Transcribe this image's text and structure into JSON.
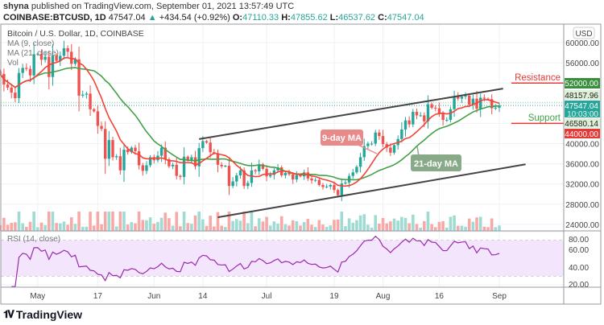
{
  "header": {
    "author": "shyna",
    "published": "published on TradingView.com, September 01, 2021 13:57:49 UTC",
    "symbol": "COINBASE:BTCUSD, 1D",
    "last": "47547.04",
    "change": "+434.54 (+0.92%)",
    "open_label": "O:",
    "open": "47110.33",
    "high_label": "H:",
    "high": "47855.62",
    "low_label": "L:",
    "low": "46537.62",
    "close_label": "C:",
    "close": "47547.04",
    "up_icon": "triangle-up-icon"
  },
  "legend": {
    "title": "Bitcoin / U.S. Dollar, 1D, COINBASE",
    "ma9": "MA (9, close)",
    "ma21": "MA (21, close)",
    "vol": "Vol",
    "rsi": "RSI (14, close)"
  },
  "annotations": {
    "resistance": "Resistance",
    "support": "Support",
    "ma9_callout": "9-day MA",
    "ma21_callout": "21-day MA"
  },
  "price_axis": {
    "currency": "USD",
    "ticks": [
      "60000.00",
      "56000.00",
      "40000.00",
      "36000.00",
      "32000.00",
      "28000.00",
      "24000.00"
    ],
    "tick_values": [
      60000,
      56000,
      40000,
      36000,
      32000,
      28000,
      24000
    ],
    "labels": [
      {
        "text": "52000.00",
        "value": 52000,
        "bg": "#388e3c",
        "fg": "#ffffff"
      },
      {
        "text": "48157.96",
        "value": 48157.96,
        "bg": "#dff0d8",
        "fg": "#222222"
      },
      {
        "text": "47547.04",
        "sub": "10:03:00",
        "value": 47547.04,
        "bg": "#26a69a",
        "fg": "#ffffff"
      },
      {
        "text": "46580.14",
        "value": 46580.14,
        "bg": "#dff0d8",
        "fg": "#222222"
      },
      {
        "text": "44000.00",
        "value": 44000,
        "bg": "#e53935",
        "fg": "#ffffff"
      }
    ]
  },
  "rsi_axis": {
    "ticks": [
      "80.00",
      "60.00",
      "40.00",
      "20.00"
    ],
    "tick_values": [
      80,
      60,
      40,
      20
    ],
    "band": [
      30,
      70
    ]
  },
  "time_axis": [
    {
      "label": "May",
      "date": "2021-05-01"
    },
    {
      "label": "17",
      "date": "2021-05-17"
    },
    {
      "label": "Jun",
      "date": "2021-06-01"
    },
    {
      "label": "14",
      "date": "2021-06-14"
    },
    {
      "label": "Jul",
      "date": "2021-07-01"
    },
    {
      "label": "19",
      "date": "2021-07-19"
    },
    {
      "label": "Aug",
      "date": "2021-08-01"
    },
    {
      "label": "16",
      "date": "2021-08-16"
    },
    {
      "label": "Sep",
      "date": "2021-09-01"
    }
  ],
  "brand": {
    "name": "TradingView"
  },
  "colors": {
    "up": "#26a69a",
    "down": "#ef5350",
    "ma9": "#f44336",
    "ma21": "#43a047",
    "rsi": "#9c27b0",
    "resistance": "#e53935",
    "support": "#43a047",
    "channel": "#444444"
  },
  "chart_data": {
    "type": "candlestick",
    "title": "Bitcoin / U.S. Dollar, 1D, COINBASE",
    "start_date": "2021-04-21",
    "ylim": [
      22500,
      63000
    ],
    "closes": [
      53800,
      51700,
      51100,
      50100,
      49000,
      54000,
      55000,
      54800,
      53500,
      57700,
      57800,
      56600,
      57200,
      53200,
      57500,
      56400,
      57400,
      58900,
      58200,
      55800,
      56700,
      49500,
      49700,
      49900,
      46800,
      46400,
      43500,
      42900,
      37000,
      40700,
      37300,
      37500,
      34700,
      38800,
      38300,
      39200,
      38500,
      35700,
      34600,
      35700,
      37300,
      36700,
      37600,
      39200,
      36900,
      35500,
      35800,
      33600,
      33400,
      37400,
      36700,
      37300,
      35500,
      39100,
      40500,
      40200,
      38300,
      38100,
      35800,
      35500,
      35600,
      31600,
      32500,
      33700,
      34700,
      31600,
      32200,
      34700,
      34500,
      35900,
      35000,
      33500,
      33800,
      34700,
      35300,
      33700,
      34200,
      33900,
      32900,
      33800,
      33500,
      34300,
      33100,
      32700,
      32800,
      31800,
      31400,
      31500,
      31800,
      30800,
      29800,
      32100,
      32300,
      33600,
      34300,
      35400,
      37300,
      39500,
      40000,
      40000,
      42200,
      41500,
      39900,
      39200,
      38200,
      39700,
      40900,
      42800,
      44600,
      43800,
      46300,
      45600,
      45600,
      44400,
      47800,
      47100,
      47000,
      45900,
      44700,
      44700,
      46800,
      49300,
      48900,
      49300,
      49500,
      47700,
      48900,
      46900,
      49100,
      48900,
      48800,
      47000,
      47100,
      47547.04
    ],
    "last_open": 47110.33,
    "horizontal_levels": [
      {
        "name": "Resistance",
        "value": 52000
      },
      {
        "name": "Support",
        "value": 44000
      }
    ],
    "channel": {
      "upper": [
        {
          "date": "2021-06-13",
          "price": 40900
        },
        {
          "date": "2021-09-02",
          "price": 50900
        }
      ],
      "lower": [
        {
          "date": "2021-06-18",
          "price": 25400
        },
        {
          "date": "2021-09-08",
          "price": 35900
        }
      ]
    },
    "indicators": [
      "MA (9, close)",
      "MA (21, close)",
      "Vol",
      "RSI (14, close)"
    ]
  }
}
